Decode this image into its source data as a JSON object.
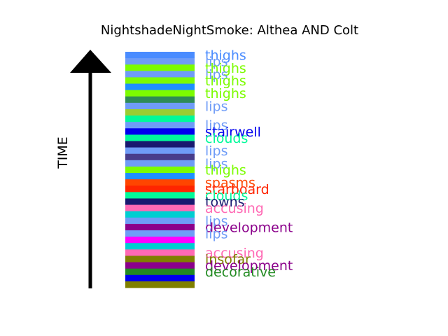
{
  "chart_data": {
    "type": "bar",
    "title": "NightshadeNightSmoke: Althea AND Colt",
    "ylabel": "TIME",
    "stripes": [
      {
        "color": "#4a8cff",
        "label": "thighs"
      },
      {
        "color": "#6f9cf7",
        "label": "lips"
      },
      {
        "color": "#7cfc00",
        "label": "thighs"
      },
      {
        "color": "#6f9cf7",
        "label": "lips"
      },
      {
        "color": "#7cfc00",
        "label": "thighs"
      },
      {
        "color": "#1e90ff",
        "label": ""
      },
      {
        "color": "#7cfc00",
        "label": "thighs"
      },
      {
        "color": "#2e8b57",
        "label": ""
      },
      {
        "color": "#6f9cf7",
        "label": "lips"
      },
      {
        "color": "#9acd32",
        "label": ""
      },
      {
        "color": "#00fa9a",
        "label": ""
      },
      {
        "color": "#6f9cf7",
        "label": "lips"
      },
      {
        "color": "#0000ee",
        "label": "stairwell"
      },
      {
        "color": "#00fa9a",
        "label": "clouds"
      },
      {
        "color": "#191970",
        "label": ""
      },
      {
        "color": "#6f9cf7",
        "label": "lips"
      },
      {
        "color": "#483d8b",
        "label": ""
      },
      {
        "color": "#6f9cf7",
        "label": "lips"
      },
      {
        "color": "#7cfc00",
        "label": "thighs"
      },
      {
        "color": "#1e90ff",
        "label": ""
      },
      {
        "color": "#ff4500",
        "label": "spasms"
      },
      {
        "color": "#ff2400",
        "label": "starboard"
      },
      {
        "color": "#00fa9a",
        "label": "clouds"
      },
      {
        "color": "#191970",
        "label": "towns"
      },
      {
        "color": "#ff69b4",
        "label": "accusing"
      },
      {
        "color": "#00ced1",
        "label": ""
      },
      {
        "color": "#6f9cf7",
        "label": "lips"
      },
      {
        "color": "#8b008b",
        "label": "development"
      },
      {
        "color": "#6f9cf7",
        "label": "lips"
      },
      {
        "color": "#ff00ff",
        "label": ""
      },
      {
        "color": "#00ced1",
        "label": ""
      },
      {
        "color": "#ff69b4",
        "label": "accusing"
      },
      {
        "color": "#808000",
        "label": "insofar"
      },
      {
        "color": "#8b008b",
        "label": "development"
      },
      {
        "color": "#228b22",
        "label": "decorative"
      },
      {
        "color": "#0000ee",
        "label": ""
      },
      {
        "color": "#808000",
        "label": ""
      }
    ]
  }
}
